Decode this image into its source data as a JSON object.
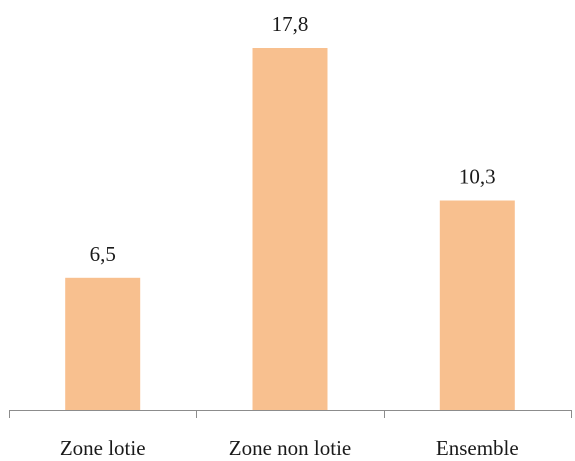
{
  "chart_data": {
    "type": "bar",
    "categories": [
      "Zone lotie",
      "Zone non lotie",
      "Ensemble"
    ],
    "values": [
      6.5,
      17.8,
      10.3
    ],
    "value_labels": [
      "6,5",
      "17,8",
      "10,3"
    ],
    "title": "",
    "xlabel": "",
    "ylabel": "",
    "ylim": [
      0,
      17.8
    ],
    "grid": false,
    "legend": "none",
    "bar_color": "#F8C08F",
    "axis_color": "#8c8c8c"
  }
}
